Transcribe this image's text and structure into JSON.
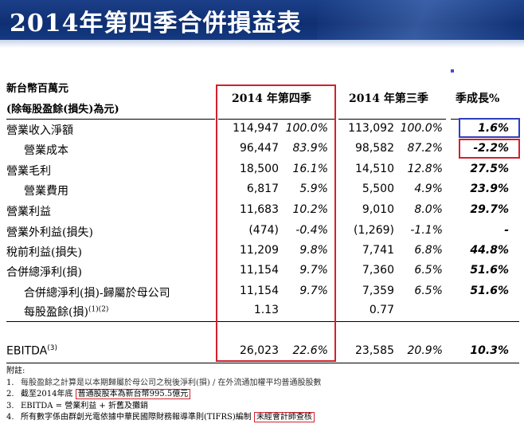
{
  "title": "2014年第四季合併損益表",
  "units_line1": "新台幣百萬元",
  "units_line2": "(除每股盈餘(損失)為元)",
  "columns": {
    "q4": "2014 年第四季",
    "q3": "2014 年第三季",
    "growth": "季成長%"
  },
  "rows": [
    {
      "label": "營業收入淨額",
      "q4_value": "114,947",
      "q4_pct": "100.0%",
      "q3_value": "113,092",
      "q3_pct": "100.0%",
      "growth": "1.6%"
    },
    {
      "label": "營業成本",
      "q4_value": "96,447",
      "q4_pct": "83.9%",
      "q3_value": "98,582",
      "q3_pct": "87.2%",
      "growth": "-2.2%"
    },
    {
      "label": "營業毛利",
      "q4_value": "18,500",
      "q4_pct": "16.1%",
      "q3_value": "14,510",
      "q3_pct": "12.8%",
      "growth": "27.5%"
    },
    {
      "label": "營業費用",
      "q4_value": "6,817",
      "q4_pct": "5.9%",
      "q3_value": "5,500",
      "q3_pct": "4.9%",
      "growth": "23.9%"
    },
    {
      "label": "營業利益",
      "q4_value": "11,683",
      "q4_pct": "10.2%",
      "q3_value": "9,010",
      "q3_pct": "8.0%",
      "growth": "29.7%"
    },
    {
      "label": "營業外利益(損失)",
      "q4_value": "(474)",
      "q4_pct": "-0.4%",
      "q3_value": "(1,269)",
      "q3_pct": "-1.1%",
      "growth": "-"
    },
    {
      "label": "稅前利益(損失)",
      "q4_value": "11,209",
      "q4_pct": "9.8%",
      "q3_value": "7,741",
      "q3_pct": "6.8%",
      "growth": "44.8%"
    },
    {
      "label": "合併總淨利(損)",
      "q4_value": "11,154",
      "q4_pct": "9.7%",
      "q3_value": "7,360",
      "q3_pct": "6.5%",
      "growth": "51.6%"
    },
    {
      "label": "合併總淨利(損)-歸屬於母公司",
      "q4_value": "11,154",
      "q4_pct": "9.7%",
      "q3_value": "7,359",
      "q3_pct": "6.5%",
      "growth": "51.6%"
    },
    {
      "label": "每股盈餘(損)",
      "label_sup": "(1)(2)",
      "q4_value": "1.13",
      "q4_pct": "",
      "q3_value": "0.77",
      "q3_pct": "",
      "growth": ""
    },
    {
      "label": "EBITDA",
      "label_sup": "(3)",
      "q4_value": "26,023",
      "q4_pct": "22.6%",
      "q3_value": "23,585",
      "q3_pct": "20.9%",
      "growth": "10.3%"
    }
  ],
  "notes": {
    "heading": "附註:",
    "n1_num": "1.",
    "n1_text": "每股盈餘之計算是以本期歸屬於母公司之稅後淨利(損) / 在外流通加權平均普通股股數",
    "n2_num": "2.",
    "n2_text_a": "截至2014年底",
    "n2_text_b": "普通股股本為新台幣995.5億元",
    "n3_num": "3.",
    "n3_text": "EBITDA = 營業利益 + 折舊及攤銷",
    "n4_num": "4.",
    "n4_text_a": "所有數字係由群創光電依據中華民國際財務報導準則(TIFRS)編制",
    "n4_text_b": "未經會計師查核"
  }
}
